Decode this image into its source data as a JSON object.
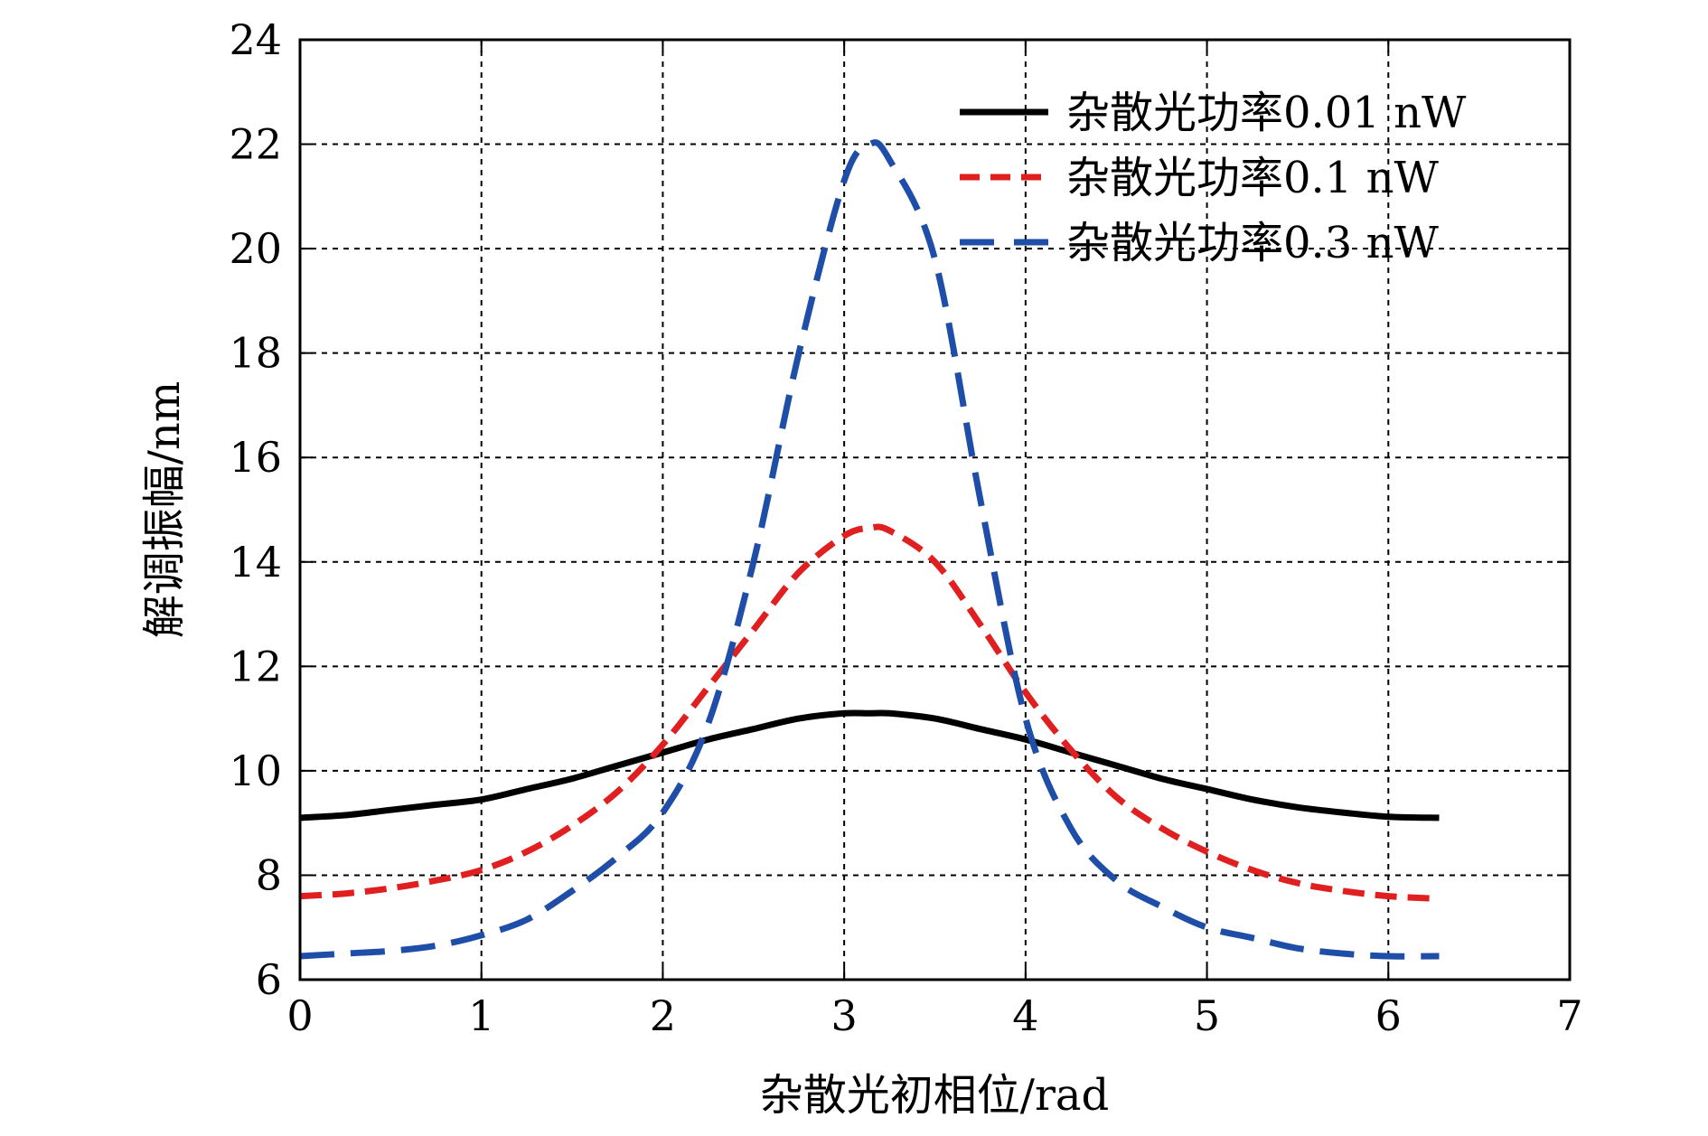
{
  "chart_data": {
    "type": "line",
    "xlabel": "杂散光初相位/rad",
    "ylabel": "解调振幅/nm",
    "xlim": [
      0,
      7
    ],
    "ylim": [
      6,
      24
    ],
    "xticks": [
      0,
      1,
      2,
      3,
      4,
      5,
      6,
      7
    ],
    "yticks": [
      6,
      8,
      10,
      12,
      14,
      16,
      18,
      20,
      22,
      24
    ],
    "grid": true,
    "legend_position": "top-right",
    "x": [
      0,
      0.25,
      0.5,
      0.75,
      1.0,
      1.25,
      1.5,
      1.75,
      2.0,
      2.25,
      2.5,
      2.75,
      3.0,
      3.14,
      3.25,
      3.5,
      3.75,
      4.0,
      4.25,
      4.5,
      4.75,
      5.0,
      5.25,
      5.5,
      5.75,
      6.0,
      6.28
    ],
    "series": [
      {
        "name": "杂散光功率0.01 nW",
        "color": "#000000",
        "style": "solid",
        "values": [
          9.1,
          9.15,
          9.25,
          9.35,
          9.45,
          9.65,
          9.85,
          10.1,
          10.35,
          10.6,
          10.8,
          11.0,
          11.1,
          11.1,
          11.1,
          11.0,
          10.8,
          10.6,
          10.35,
          10.1,
          9.85,
          9.65,
          9.45,
          9.3,
          9.2,
          9.12,
          9.1
        ]
      },
      {
        "name": "杂散光功率0.1 nW",
        "color": "#e02020",
        "style": "dashed",
        "values": [
          7.6,
          7.65,
          7.75,
          7.9,
          8.1,
          8.45,
          8.95,
          9.6,
          10.5,
          11.6,
          12.7,
          13.8,
          14.5,
          14.65,
          14.6,
          14.0,
          12.8,
          11.5,
          10.4,
          9.5,
          8.9,
          8.45,
          8.1,
          7.85,
          7.7,
          7.6,
          7.55
        ]
      },
      {
        "name": "杂散光功率0.3 nW",
        "color": "#1f4ea8",
        "style": "longdash",
        "values": [
          6.45,
          6.5,
          6.55,
          6.65,
          6.85,
          7.15,
          7.7,
          8.35,
          9.2,
          10.9,
          14.0,
          18.0,
          21.3,
          22.0,
          21.7,
          19.8,
          15.2,
          11.0,
          8.9,
          7.9,
          7.4,
          7.0,
          6.8,
          6.6,
          6.5,
          6.45,
          6.45
        ]
      }
    ]
  }
}
